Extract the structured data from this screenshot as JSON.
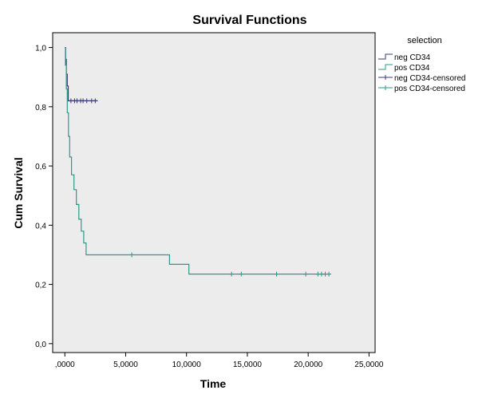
{
  "chart_data": {
    "type": "line",
    "title": "Survival Functions",
    "xlabel": "Time",
    "ylabel": "Cum Survival",
    "xlim": [
      -1000,
      25500
    ],
    "ylim": [
      -0.03,
      1.05
    ],
    "x_ticks": [
      0,
      5000,
      10000,
      15000,
      20000,
      25000
    ],
    "x_tick_labels": [
      ",0000",
      "5,0000",
      "10,0000",
      "15,0000",
      "20,0000",
      "25,0000"
    ],
    "y_ticks": [
      0,
      0.2,
      0.4,
      0.6,
      0.8,
      1.0
    ],
    "y_tick_labels": [
      "0,0",
      "0,2",
      "0,4",
      "0,6",
      "0,8",
      "1,0"
    ],
    "grid": false,
    "plot_background": "#ececec",
    "legend": {
      "title": "selection",
      "placement": "right",
      "entries": [
        "neg CD34",
        "pos CD34",
        "neg CD34-censored",
        "pos CD34-censored"
      ]
    },
    "series": [
      {
        "name": "neg CD34",
        "color": "#3a3a7a",
        "type": "step",
        "points": [
          [
            0,
            1.0
          ],
          [
            60,
            0.96
          ],
          [
            120,
            0.91
          ],
          [
            200,
            0.87
          ],
          [
            280,
            0.82
          ],
          [
            2700,
            0.82
          ]
        ]
      },
      {
        "name": "pos CD34",
        "color": "#2a9a8a",
        "type": "step",
        "points": [
          [
            0,
            1.0
          ],
          [
            50,
            0.94
          ],
          [
            120,
            0.86
          ],
          [
            200,
            0.78
          ],
          [
            300,
            0.7
          ],
          [
            400,
            0.63
          ],
          [
            550,
            0.57
          ],
          [
            750,
            0.52
          ],
          [
            950,
            0.47
          ],
          [
            1150,
            0.42
          ],
          [
            1350,
            0.38
          ],
          [
            1550,
            0.34
          ],
          [
            1750,
            0.3
          ],
          [
            8600,
            0.3
          ],
          [
            8600,
            0.268
          ],
          [
            10200,
            0.268
          ],
          [
            10200,
            0.235
          ],
          [
            21800,
            0.235
          ]
        ]
      },
      {
        "name": "neg CD34-censored",
        "color": "#3a3a7a",
        "type": "censor",
        "points": [
          [
            500,
            0.82
          ],
          [
            800,
            0.82
          ],
          [
            1000,
            0.82
          ],
          [
            1300,
            0.82
          ],
          [
            1500,
            0.82
          ],
          [
            1800,
            0.82
          ],
          [
            2200,
            0.82
          ],
          [
            2500,
            0.82
          ]
        ]
      },
      {
        "name": "pos CD34-censored",
        "color": "#2a9a8a",
        "type": "censor",
        "points": [
          [
            5500,
            0.3
          ],
          [
            13700,
            0.235
          ],
          [
            14500,
            0.235
          ],
          [
            17400,
            0.235
          ],
          [
            19800,
            0.235
          ],
          [
            20800,
            0.235
          ],
          [
            21100,
            0.235
          ],
          [
            21400,
            0.235
          ],
          [
            21700,
            0.235
          ]
        ]
      }
    ]
  }
}
